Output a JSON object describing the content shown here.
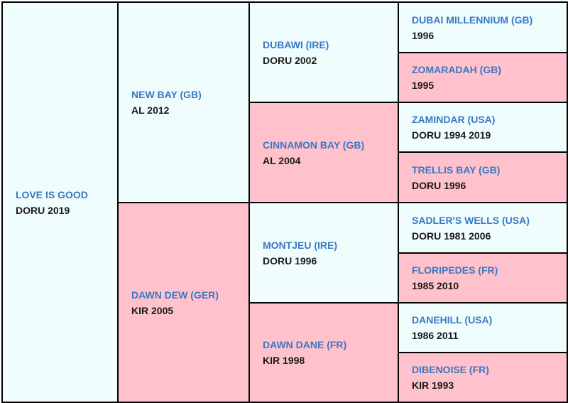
{
  "pedigree": {
    "subject": {
      "name": "LOVE IS GOOD",
      "info": "DORU 2019"
    },
    "sire": {
      "name": "NEW BAY (GB)",
      "info": "AL 2012"
    },
    "dam": {
      "name": "DAWN DEW (GER)",
      "info": "KIR 2005"
    },
    "sire_sire": {
      "name": "DUBAWI (IRE)",
      "info": "DORU 2002"
    },
    "sire_dam": {
      "name": "CINNAMON BAY (GB)",
      "info": "AL 2004"
    },
    "dam_sire": {
      "name": "MONTJEU (IRE)",
      "info": "DORU 1996"
    },
    "dam_dam": {
      "name": "DAWN DANE (FR)",
      "info": "KIR 1998"
    },
    "gen3": [
      {
        "name": "DUBAI MILLENNIUM (GB)",
        "info": "1996"
      },
      {
        "name": "ZOMARADAH (GB)",
        "info": "1995"
      },
      {
        "name": "ZAMINDAR (USA)",
        "info": "DORU 1994 2019"
      },
      {
        "name": "TRELLIS BAY (GB)",
        "info": "DORU 1996"
      },
      {
        "name": "SADLER'S WELLS (USA)",
        "info": "DORU 1981 2006"
      },
      {
        "name": "FLORIPEDES (FR)",
        "info": "1985 2010"
      },
      {
        "name": "DANEHILL (USA)",
        "info": "1986 2011"
      },
      {
        "name": "DIBENOISE (FR)",
        "info": "KIR 1993"
      }
    ]
  },
  "colors": {
    "male": "#f0fdfd",
    "female": "#ffc2cc",
    "name": "#3a78c4",
    "border": "#000000"
  }
}
